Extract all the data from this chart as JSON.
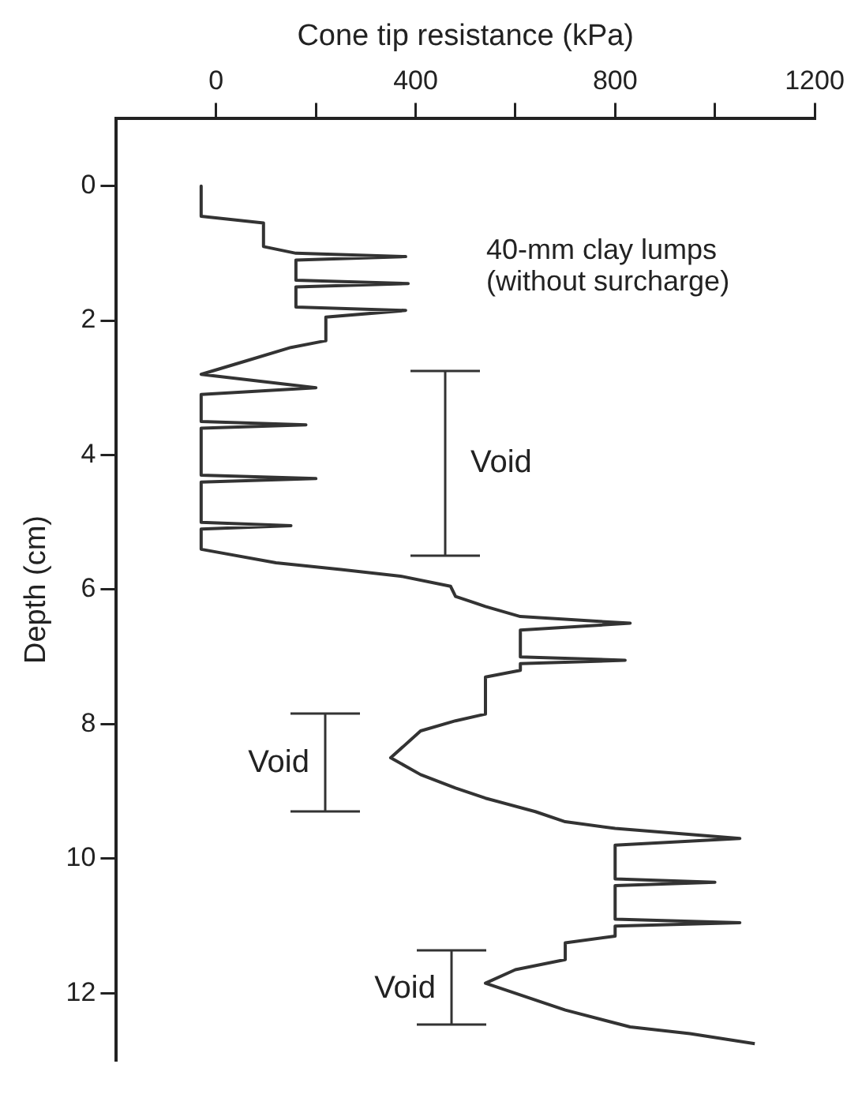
{
  "chart_data": {
    "type": "line",
    "xlabel": "Cone tip resistance (kPa)",
    "ylabel": "Depth (cm)",
    "xlim": [
      -200,
      1200
    ],
    "xticks": [
      0,
      {
        "value": 200,
        "label": null
      },
      400,
      {
        "value": 600,
        "label": null
      },
      800,
      {
        "value": 1000,
        "label": null
      },
      1200
    ],
    "ylim": [
      13,
      -1
    ],
    "yticks": [
      0,
      2,
      4,
      6,
      8,
      10,
      12
    ],
    "grid": false,
    "legend": false,
    "marker": "none",
    "line_style": "solid",
    "series": [
      {
        "color": "#333333",
        "x": [
          -30,
          -30,
          95,
          95,
          160,
          380,
          160,
          160,
          385,
          160,
          160,
          380,
          220,
          220,
          150,
          60,
          -30,
          200,
          -30,
          -30,
          180,
          -30,
          -30,
          200,
          -30,
          -30,
          150,
          -30,
          -30,
          120,
          250,
          370,
          470,
          480,
          540,
          610,
          830,
          610,
          610,
          820,
          610,
          610,
          540,
          540,
          480,
          410,
          350,
          410,
          480,
          540,
          640,
          700,
          800,
          1050,
          800,
          800,
          1000,
          800,
          800,
          1050,
          800,
          800,
          700,
          700,
          600,
          540,
          600,
          700,
          830,
          950,
          1080
        ],
        "values": [
          0,
          0.45,
          0.55,
          0.9,
          1.0,
          1.05,
          1.1,
          1.4,
          1.45,
          1.5,
          1.8,
          1.85,
          1.95,
          2.3,
          2.4,
          2.6,
          2.8,
          3.0,
          3.1,
          3.5,
          3.55,
          3.6,
          4.3,
          4.35,
          4.4,
          5.0,
          5.05,
          5.1,
          5.4,
          5.6,
          5.7,
          5.8,
          5.95,
          6.1,
          6.25,
          6.4,
          6.5,
          6.6,
          7.0,
          7.05,
          7.1,
          7.2,
          7.3,
          7.85,
          7.95,
          8.1,
          8.5,
          8.75,
          8.95,
          9.1,
          9.3,
          9.45,
          9.55,
          9.7,
          9.8,
          10.3,
          10.35,
          10.4,
          10.9,
          10.95,
          11.0,
          11.15,
          11.25,
          11.5,
          11.65,
          11.85,
          12.0,
          12.25,
          12.5,
          12.6,
          12.75
        ]
      }
    ],
    "annotations": [
      "40-mm clay lumps (without surcharge)",
      "Void",
      "Void",
      "Void"
    ]
  }
}
